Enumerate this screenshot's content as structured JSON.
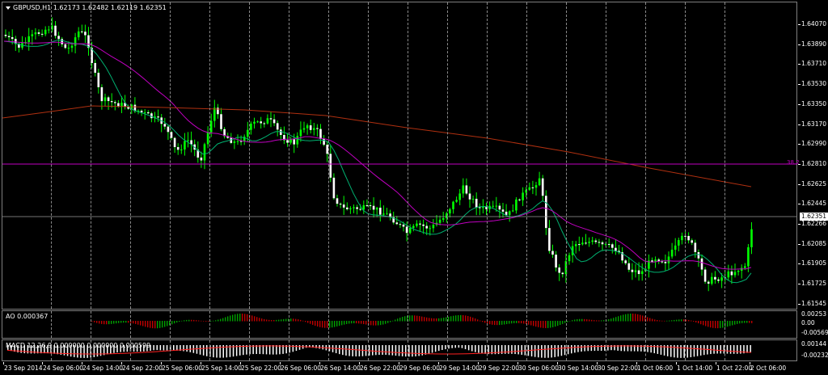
{
  "main": {
    "symbol_title": "GBPUSD,H1  1.62173 1.62482 1.62119 1.62351",
    "y_labels": [
      "1.64070",
      "1.63890",
      "1.63710",
      "1.63530",
      "1.63350",
      "1.63170",
      "1.62990",
      "1.62810",
      "1.62625",
      "1.62445",
      "1.62266",
      "1.62085",
      "1.61905",
      "1.61725",
      "1.61545"
    ],
    "current_price": "1.62351",
    "fib_label": "38.2",
    "colors": {
      "bull": "#00ff00",
      "bear": "#ffffff",
      "ma_fast": "#00b070",
      "ma_mid": "#c000c0",
      "ma_slow": "#b03010",
      "fib": "#c000c0"
    }
  },
  "ao": {
    "title": "AO 0.000367",
    "y_labels": [
      "0.00253",
      "0.00",
      "-0.00569"
    ]
  },
  "ma": {
    "title": "MACD 12,26,9  0.000000  0.000000  0.000599",
    "y_labels": [
      "0.00144",
      "-0.00232"
    ]
  },
  "x_labels": [
    "23 Sep 2014",
    "24 Sep 06:00",
    "24 Sep 14:00",
    "24 Sep 22:00",
    "25 Sep 06:00",
    "25 Sep 14:00",
    "25 Sep 22:00",
    "26 Sep 06:00",
    "26 Sep 14:00",
    "26 Sep 22:00",
    "29 Sep 06:00",
    "29 Sep 14:00",
    "29 Sep 22:00",
    "30 Sep 06:00",
    "30 Sep 14:00",
    "30 Sep 22:00",
    "1 Oct 06:00",
    "1 Oct 14:00",
    "1 Oct 22:00",
    "2 Oct 06:00"
  ]
}
